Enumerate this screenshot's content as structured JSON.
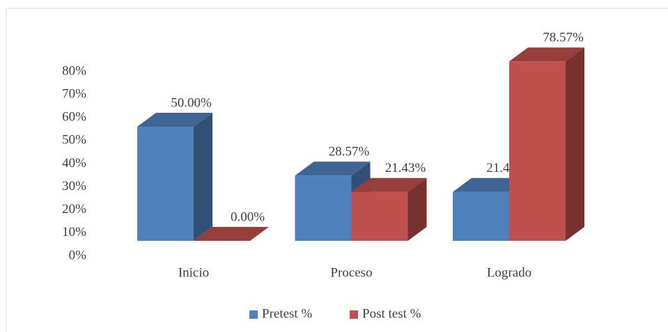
{
  "chart_data": {
    "type": "bar3d",
    "categories": [
      "Inicio",
      "Proceso",
      "Logrado"
    ],
    "series": [
      {
        "name": "Pretest %",
        "color": "#4f81bd",
        "values": [
          50,
          28.57,
          21.43
        ],
        "value_labels": [
          "50.00%",
          "28.57%",
          "21.43%"
        ]
      },
      {
        "name": "Post test %",
        "color": "#c0504d",
        "values": [
          0,
          21.43,
          78.57
        ],
        "value_labels": [
          "0.00%",
          "21.43%",
          "78.57%"
        ]
      }
    ],
    "ylim": [
      0,
      80
    ],
    "yticks": [
      {
        "value": 0,
        "label": "0%"
      },
      {
        "value": 10,
        "label": "10%"
      },
      {
        "value": 20,
        "label": "20%"
      },
      {
        "value": 30,
        "label": "30%"
      },
      {
        "value": 40,
        "label": "40%"
      },
      {
        "value": 50,
        "label": "50%"
      },
      {
        "value": 60,
        "label": "60%"
      },
      {
        "value": 70,
        "label": "70%"
      },
      {
        "value": 80,
        "label": "80%"
      }
    ],
    "grid": false,
    "legend": "bottom"
  }
}
